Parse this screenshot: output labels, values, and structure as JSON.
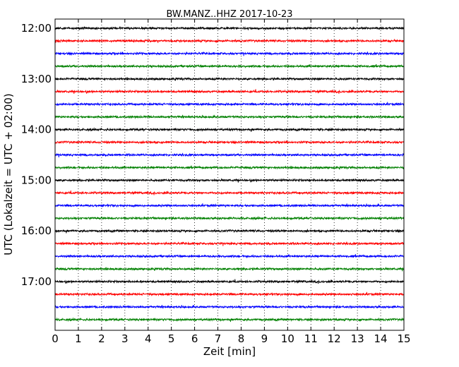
{
  "chart_data": {
    "type": "line",
    "title": "BW.MANZ..HHZ 2017-10-23",
    "xlabel": "Zeit  [min]",
    "ylabel": "UTC (Lokalzeit = UTC + 02:00)",
    "xlim": [
      0,
      15
    ],
    "x_ticks": [
      "0",
      "1",
      "2",
      "3",
      "4",
      "5",
      "6",
      "7",
      "8",
      "9",
      "10",
      "11",
      "12",
      "13",
      "14",
      "15"
    ],
    "y_ticks": [
      "12:00",
      "13:00",
      "14:00",
      "15:00",
      "16:00",
      "17:00"
    ],
    "grid": "vertical dotted",
    "trace_colors": [
      "#000000",
      "#ff0000",
      "#0000ff",
      "#008000"
    ],
    "traces": [
      {
        "start": "12:00",
        "color": "#000000"
      },
      {
        "start": "12:15",
        "color": "#ff0000"
      },
      {
        "start": "12:30",
        "color": "#0000ff"
      },
      {
        "start": "12:45",
        "color": "#008000"
      },
      {
        "start": "13:00",
        "color": "#000000"
      },
      {
        "start": "13:15",
        "color": "#ff0000"
      },
      {
        "start": "13:30",
        "color": "#0000ff"
      },
      {
        "start": "13:45",
        "color": "#008000"
      },
      {
        "start": "14:00",
        "color": "#000000"
      },
      {
        "start": "14:15",
        "color": "#ff0000"
      },
      {
        "start": "14:30",
        "color": "#0000ff"
      },
      {
        "start": "14:45",
        "color": "#008000"
      },
      {
        "start": "15:00",
        "color": "#000000"
      },
      {
        "start": "15:15",
        "color": "#ff0000"
      },
      {
        "start": "15:30",
        "color": "#0000ff"
      },
      {
        "start": "15:45",
        "color": "#008000"
      },
      {
        "start": "16:00",
        "color": "#000000"
      },
      {
        "start": "16:15",
        "color": "#ff0000"
      },
      {
        "start": "16:30",
        "color": "#0000ff"
      },
      {
        "start": "16:45",
        "color": "#008000"
      },
      {
        "start": "17:00",
        "color": "#000000"
      },
      {
        "start": "17:15",
        "color": "#ff0000"
      },
      {
        "start": "17:30",
        "color": "#0000ff"
      },
      {
        "start": "17:45",
        "color": "#008000"
      }
    ]
  }
}
